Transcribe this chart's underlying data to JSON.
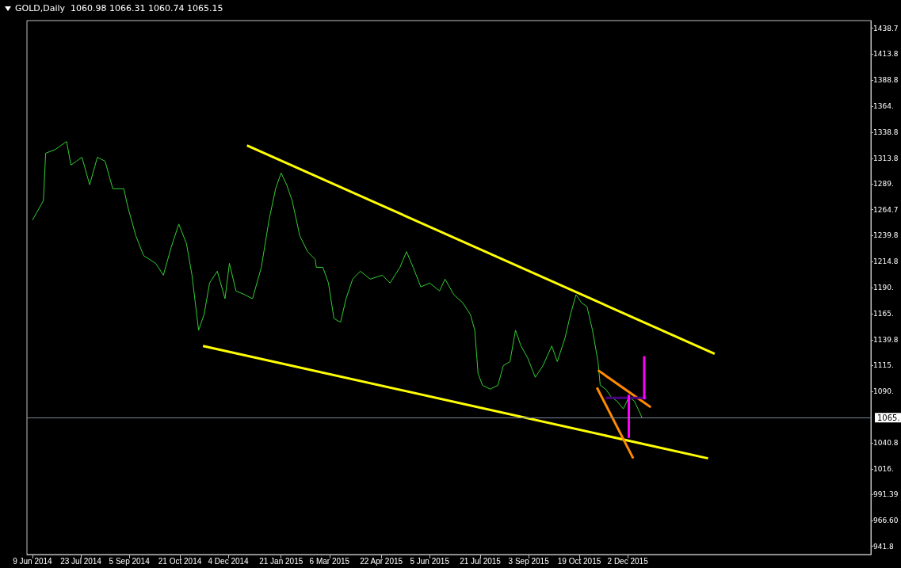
{
  "chart_data": {
    "type": "line",
    "title": "GOLD,Daily  1060.98 1066.31 1060.74 1065.15",
    "xlim": [
      "2014-06-04",
      "2016-07-10"
    ],
    "xticks": [
      {
        "value": "2014-06-09",
        "label": "9 Jun 2014"
      },
      {
        "value": "2014-07-23",
        "label": "23 Jul 2014"
      },
      {
        "value": "2014-09-05",
        "label": "5 Sep 2014"
      },
      {
        "value": "2014-10-21",
        "label": "21 Oct 2014"
      },
      {
        "value": "2014-12-04",
        "label": "4 Dec 2014"
      },
      {
        "value": "2015-01-21",
        "label": "21 Jan 2015"
      },
      {
        "value": "2015-03-06",
        "label": "6 Mar 2015"
      },
      {
        "value": "2015-04-22",
        "label": "22 Apr 2015"
      },
      {
        "value": "2015-06-05",
        "label": "5 Jun 2015"
      },
      {
        "value": "2015-07-21",
        "label": "21 Jul 2015"
      },
      {
        "value": "2015-09-03",
        "label": "3 Sep 2015"
      },
      {
        "value": "2015-10-19",
        "label": "19 Oct 2015"
      },
      {
        "value": "2015-12-02",
        "label": "2 Dec 2015"
      }
    ],
    "ylim": [
      934,
      1446
    ],
    "yticks": [
      {
        "value": 941.8,
        "label": "941.8"
      },
      {
        "value": 966.6,
        "label": "966.60"
      },
      {
        "value": 991.39,
        "label": "991.39"
      },
      {
        "value": 1016.1,
        "label": "1016."
      },
      {
        "value": 1040.8,
        "label": "1040.8"
      },
      {
        "value": 1090.4,
        "label": "1090."
      },
      {
        "value": 1115.2,
        "label": "1115."
      },
      {
        "value": 1139.8,
        "label": "1139.8"
      },
      {
        "value": 1164.9,
        "label": "1165."
      },
      {
        "value": 1190,
        "label": "1190."
      },
      {
        "value": 1214.8,
        "label": "1214.8"
      },
      {
        "value": 1239.8,
        "label": "1239.8"
      },
      {
        "value": 1264.7,
        "label": "1264.7"
      },
      {
        "value": 1289.5,
        "label": "1289."
      },
      {
        "value": 1313.8,
        "label": "1313.8"
      },
      {
        "value": 1338.8,
        "label": "1338.8"
      },
      {
        "value": 1364,
        "label": "1364."
      },
      {
        "value": 1388.8,
        "label": "1388.8"
      },
      {
        "value": 1413.8,
        "label": "1413.8"
      },
      {
        "value": 1438.7,
        "label": "1438.7"
      }
    ],
    "ref_lines": [
      {
        "axis": "y",
        "value": 1065.15,
        "label": "1065.",
        "color": "#778899"
      }
    ],
    "grid": false,
    "marker": "none",
    "series": [
      {
        "color": "#32cd32",
        "x": [
          "2014-06-09",
          "2014-06-19",
          "2014-06-21",
          "2014-06-30",
          "2014-07-10",
          "2014-07-14",
          "2014-07-19",
          "2014-07-24",
          "2014-07-31",
          "2014-08-07",
          "2014-08-14",
          "2014-08-21",
          "2014-08-31",
          "2014-09-04",
          "2014-09-11",
          "2014-09-18",
          "2014-09-29",
          "2014-10-06",
          "2014-10-13",
          "2014-10-20",
          "2014-10-27",
          "2014-11-01",
          "2014-11-07",
          "2014-11-12",
          "2014-11-17",
          "2014-11-24",
          "2014-12-01",
          "2014-12-05",
          "2014-12-11",
          "2014-12-19",
          "2014-12-26",
          "2015-01-03",
          "2015-01-10",
          "2015-01-16",
          "2015-01-21",
          "2015-01-26",
          "2015-01-31",
          "2015-02-07",
          "2015-02-14",
          "2015-02-21",
          "2015-02-22",
          "2015-02-28",
          "2015-03-05",
          "2015-03-10",
          "2015-03-16",
          "2015-03-21",
          "2015-03-27",
          "2015-04-03",
          "2015-04-12",
          "2015-04-23",
          "2015-04-30",
          "2015-05-09",
          "2015-05-15",
          "2015-05-21",
          "2015-05-28",
          "2015-06-05",
          "2015-06-14",
          "2015-06-19",
          "2015-06-27",
          "2015-07-05",
          "2015-07-12",
          "2015-07-16",
          "2015-07-19",
          "2015-07-23",
          "2015-07-30",
          "2015-08-06",
          "2015-08-11",
          "2015-08-17",
          "2015-08-22",
          "2015-08-27",
          "2015-09-02",
          "2015-09-09",
          "2015-09-16",
          "2015-09-24",
          "2015-09-29",
          "2015-10-06",
          "2015-10-11",
          "2015-10-16",
          "2015-10-21",
          "2015-10-26",
          "2015-10-31",
          "2015-11-05",
          "2015-11-07",
          "2015-11-12",
          "2015-11-17",
          "2015-11-22",
          "2015-11-28",
          "2015-12-03",
          "2015-12-08",
          "2015-12-13",
          "2015-12-15"
        ],
        "values": [
          1254.7,
          1273.5,
          1318.8,
          1322.5,
          1330.1,
          1307.5,
          1311.2,
          1315.0,
          1288.6,
          1315.0,
          1311.2,
          1284.8,
          1284.8,
          1266.0,
          1239.6,
          1220.7,
          1213.2,
          1201.9,
          1228.3,
          1250.9,
          1232.1,
          1201.9,
          1149.1,
          1164.2,
          1194.4,
          1205.7,
          1179.3,
          1213.2,
          1186.8,
          1183.1,
          1179.3,
          1209.4,
          1254.7,
          1284.8,
          1299.9,
          1288.6,
          1273.5,
          1239.6,
          1224.5,
          1217.0,
          1209.4,
          1209.4,
          1194.4,
          1160.4,
          1156.7,
          1179.3,
          1198.1,
          1205.7,
          1198.1,
          1201.9,
          1194.4,
          1209.4,
          1224.5,
          1209.4,
          1190.6,
          1194.4,
          1186.8,
          1198.1,
          1183.1,
          1175.5,
          1164.2,
          1149.1,
          1107.7,
          1096.3,
          1092.6,
          1096.3,
          1115.2,
          1119.0,
          1149.1,
          1134.0,
          1122.7,
          1103.9,
          1115.2,
          1134.0,
          1119.0,
          1141.6,
          1164.2,
          1183.1,
          1175.5,
          1171.7,
          1149.1,
          1119.0,
          1096.3,
          1092.6,
          1085.0,
          1081.3,
          1073.7,
          1085.0,
          1081.3,
          1070.0,
          1065.2
        ]
      },
      {
        "color": "#ffff00",
        "x": [
          "2014-12-21",
          "2016-02-19"
        ],
        "values": [
          1326.3,
          1126.5
        ]
      },
      {
        "color": "#ffff00",
        "x": [
          "2014-11-11",
          "2016-02-13"
        ],
        "values": [
          1134.0,
          1026.2
        ]
      },
      {
        "color": "#ff8c00",
        "x": [
          "2015-11-05",
          "2015-12-23"
        ],
        "values": [
          1110.7,
          1075.2
        ]
      },
      {
        "color": "#ff8c00",
        "x": [
          "2015-11-04",
          "2015-12-07"
        ],
        "values": [
          1094.1,
          1026.2
        ]
      },
      {
        "color": "#4b0082",
        "x": [
          "2015-11-12",
          "2015-12-19"
        ],
        "values": [
          1084.3,
          1084.3
        ]
      },
      {
        "color": "#ff00ff",
        "x": [
          "2015-12-03",
          "2015-12-03"
        ],
        "values": [
          1087.3,
          1045.8
        ]
      },
      {
        "color": "#ff00ff",
        "x": [
          "2015-12-17",
          "2015-12-17"
        ],
        "values": [
          1124.2,
          1082.8
        ]
      }
    ]
  }
}
